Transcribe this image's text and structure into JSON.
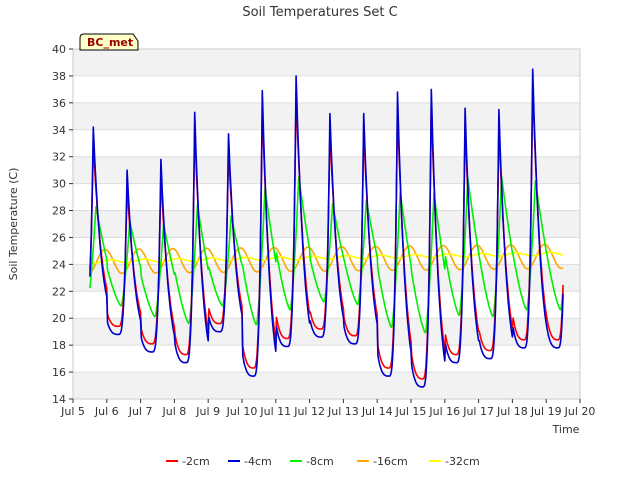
{
  "chart_data": {
    "type": "line",
    "title": "Soil Temperatures Set C",
    "xlabel": "Time",
    "ylabel": "Soil Temperature (C)",
    "ylim": [
      14,
      40
    ],
    "yticks": [
      14,
      16,
      18,
      20,
      22,
      24,
      26,
      28,
      30,
      32,
      34,
      36,
      38,
      40
    ],
    "xlim_days": [
      5,
      20
    ],
    "xtick_labels": [
      "Jul 5",
      "Jul 6",
      "Jul 7",
      "Jul 8",
      "Jul 9",
      "Jul 10",
      "Jul 11",
      "Jul 12",
      "Jul 13",
      "Jul 14",
      "Jul 15",
      "Jul 16",
      "Jul 17",
      "Jul 18",
      "Jul 19",
      "Jul 20"
    ],
    "grid": "horizontal bands",
    "station_label": "BC_met",
    "series_start": "Jul 5 12:00",
    "series_end": "Jul 19 12:00",
    "daily_peaks": {
      "minus_4cm": [
        34.2,
        31.0,
        31.8,
        35.3,
        33.7,
        36.9,
        38.0,
        35.2,
        35.2,
        36.8,
        37.0,
        35.6,
        35.5,
        38.5
      ],
      "minus_4cm_minima": [
        20.4,
        18.8,
        17.5,
        16.7,
        19.0,
        15.7,
        17.9,
        18.6,
        18.1,
        15.7,
        14.9,
        16.7,
        17.0,
        17.8
      ],
      "minus_8cm": [
        28.3,
        27.2,
        27.0,
        28.4,
        27.6,
        29.7,
        30.5,
        28.5,
        28.8,
        29.4,
        29.3,
        30.4,
        30.5,
        30.2
      ],
      "minus_8cm_minima": [
        21.0,
        20.9,
        20.1,
        19.6,
        20.9,
        19.5,
        20.6,
        21.2,
        21.0,
        19.3,
        18.9,
        20.2,
        20.1,
        20.6
      ]
    },
    "series": [
      {
        "name": "-2cm",
        "color": "#ff0000"
      },
      {
        "name": "-4cm",
        "color": "#0000cc"
      },
      {
        "name": "-8cm",
        "color": "#00ee00"
      },
      {
        "name": "-16cm",
        "color": "#ffa500"
      },
      {
        "name": "-32cm",
        "color": "#ffff00"
      }
    ]
  }
}
